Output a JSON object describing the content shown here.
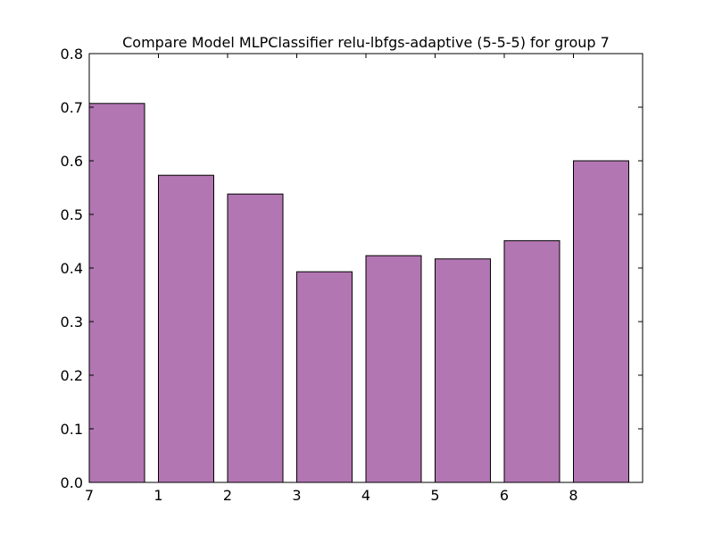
{
  "chart_data": {
    "type": "bar",
    "title": "Compare Model MLPClassifier relu-lbfgs-adaptive (5-5-5) for group 7",
    "xlabel": "",
    "ylabel": "",
    "categories": [
      "7",
      "1",
      "2",
      "3",
      "4",
      "5",
      "6",
      "8"
    ],
    "values": [
      0.707,
      0.573,
      0.538,
      0.393,
      0.423,
      0.417,
      0.451,
      0.6
    ],
    "ylim": [
      0,
      0.8
    ],
    "yticks": [
      "0.0",
      "0.1",
      "0.2",
      "0.3",
      "0.4",
      "0.5",
      "0.6",
      "0.7",
      "0.8"
    ],
    "bar_color": "#b276b2",
    "edge_color": "#000000",
    "grid": false
  }
}
